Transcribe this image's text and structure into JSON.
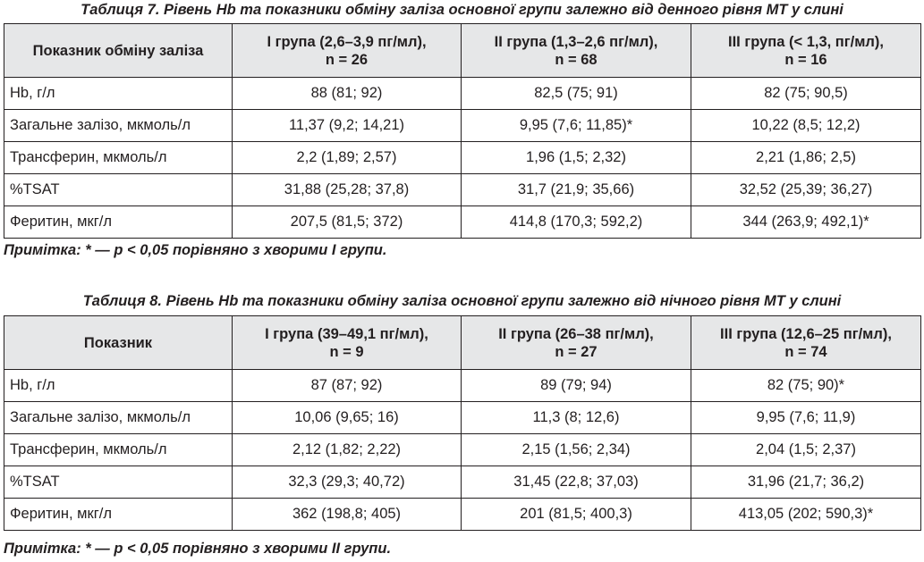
{
  "table7": {
    "caption": "Таблиця 7. Рівень Hb та показники обміну заліза основної групи залежно від денного рівня МТ у слині",
    "header": [
      "Показник обміну заліза",
      "І група (2,6–3,9 пг/мл), n = 26",
      "ІІ група (1,3–2,6 пг/мл), n = 68",
      "ІІІ група (< 1,3, пг/мл), n = 16"
    ],
    "rows": [
      [
        "Hb, г/л",
        "88 (81; 92)",
        "82,5 (75; 91)",
        "82 (75; 90,5)"
      ],
      [
        "Загальне залізо, мкмоль/л",
        "11,37 (9,2; 14,21)",
        "9,95 (7,6; 11,85)*",
        "10,22 (8,5; 12,2)"
      ],
      [
        "Трансферин, мкмоль/л",
        "2,2 (1,89; 2,57)",
        "1,96 (1,5; 2,32)",
        "2,21 (1,86; 2,5)"
      ],
      [
        "%TSAT",
        "31,88 (25,28; 37,8)",
        "31,7 (21,9; 35,66)",
        "32,52 (25,39; 36,27)"
      ],
      [
        "Феритин, мкг/л",
        "207,5 (81,5; 372)",
        "414,8 (170,3; 592,2)",
        "344 (263,9; 492,1)*"
      ]
    ],
    "note": "Примітка: * —  p < 0,05 порівняно з хворими І групи."
  },
  "table8": {
    "caption": "Таблиця 8. Рівень Hb та показники обміну заліза основної групи залежно від нічного рівня МТ у слині",
    "header": [
      "Показник",
      "І група (39–49,1 пг/мл), n = 9",
      "ІІ група (26–38 пг/мл), n = 27",
      "ІІІ група (12,6–25 пг/мл), n = 74"
    ],
    "rows": [
      [
        "Hb, г/л",
        "87 (87; 92)",
        "89 (79; 94)",
        "82 (75; 90)*"
      ],
      [
        "Загальне залізо, мкмоль/л",
        "10,06 (9,65; 16)",
        "11,3 (8; 12,6)",
        "9,95 (7,6; 11,9)"
      ],
      [
        "Трансферин, мкмоль/л",
        "2,12 (1,82; 2,22)",
        "2,15 (1,56; 2,34)",
        "2,04 (1,5; 2,37)"
      ],
      [
        "%TSAT",
        "32,3 (29,3; 40,72)",
        "31,45 (22,8; 37,03)",
        "31,96 (21,7; 36,2)"
      ],
      [
        "Феритин, мкг/л",
        "362 (198,8; 405)",
        "201 (81,5; 400,3)",
        "413,05 (202; 590,3)*"
      ]
    ],
    "note": "Примітка: * — p < 0,05 порівняно з хворими ІІ групи."
  }
}
